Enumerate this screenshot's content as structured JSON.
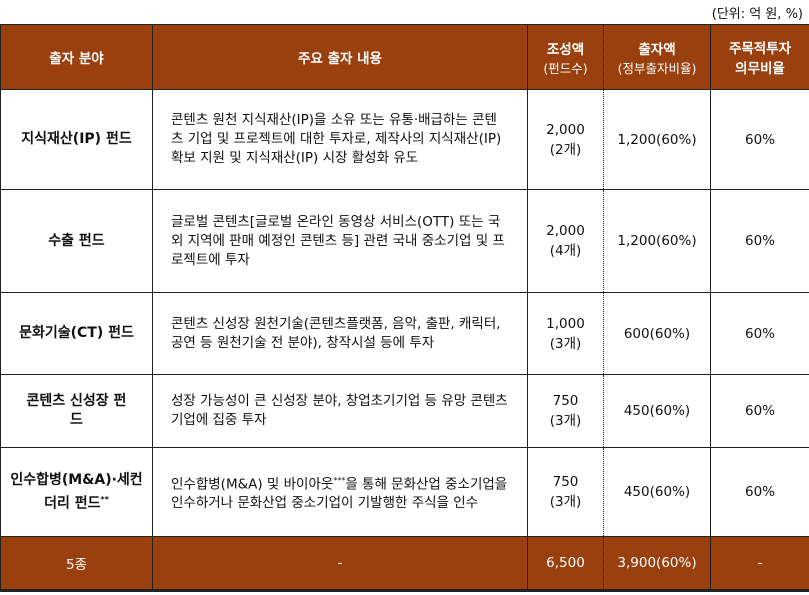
{
  "unit": "(단위: 억 원, %)",
  "headers": {
    "field": "출자 분야",
    "content": "주요 출자 내용",
    "size": "조성액",
    "size_sub": "(펀드수)",
    "invest": "출자액",
    "invest_sub": "(정부출자비율)",
    "ratio": "주목적투자",
    "ratio2": "의무비율"
  },
  "rows": [
    {
      "name": "지식재산(IP) 펀드",
      "desc": "콘텐츠 원천 지식재산(IP)을 소유 또는 유통·배급하는 콘텐츠 기업 및 프로젝트에 대한 투자로, 제작사의 지식재산(IP) 확보 지원 및 지식재산(IP) 시장 활성화 유도",
      "size": "2,000",
      "count": "(2개)",
      "invest": "1,200(60%)",
      "ratio": "60%"
    },
    {
      "name": "수출 펀드",
      "desc": "글로벌 콘텐츠[글로벌 온라인 동영상 서비스(OTT) 또는 국외 지역에 판매 예정인 콘텐츠 등] 관련 국내 중소기업 및 프로젝트에 투자",
      "size": "2,000",
      "count": "(4개)",
      "invest": "1,200(60%)",
      "ratio": "60%"
    },
    {
      "name": "문화기술(CT) 펀드",
      "desc": "콘텐츠 신성장 원천기술(콘텐츠플랫폼, 음악, 출판, 캐릭터, 공연 등 원천기술 전 분야), 창작시설 등에 투자",
      "size": "1,000",
      "count": "(3개)",
      "invest": "600(60%)",
      "ratio": "60%"
    },
    {
      "name": "콘텐츠 신성장 펀드",
      "desc": "성장 가능성이 큰 신성장 분야, 창업초기기업 등 유망 콘텐츠기업에 집중 투자",
      "size": "750",
      "count": "(3개)",
      "invest": "450(60%)",
      "ratio": "60%"
    },
    {
      "name": "인수합병(M&A)·세컨더리 펀드",
      "name_mark": "**",
      "desc_a": "인수합병(M&A) 및 바이아웃",
      "desc_mark": "***",
      "desc_b": "을 통해 문화산업 중소기업을 인수하거나 문화산업 중소기업이 기발행한 주식을 인수",
      "size": "750",
      "count": "(3개)",
      "invest": "450(60%)",
      "ratio": "60%"
    }
  ],
  "total": {
    "name": "5종",
    "desc": "-",
    "size": "6,500",
    "invest": "3,900(60%)",
    "ratio": "-"
  },
  "colors": {
    "header_bg": "#9a3f0e",
    "header_text": "#ffffff"
  }
}
